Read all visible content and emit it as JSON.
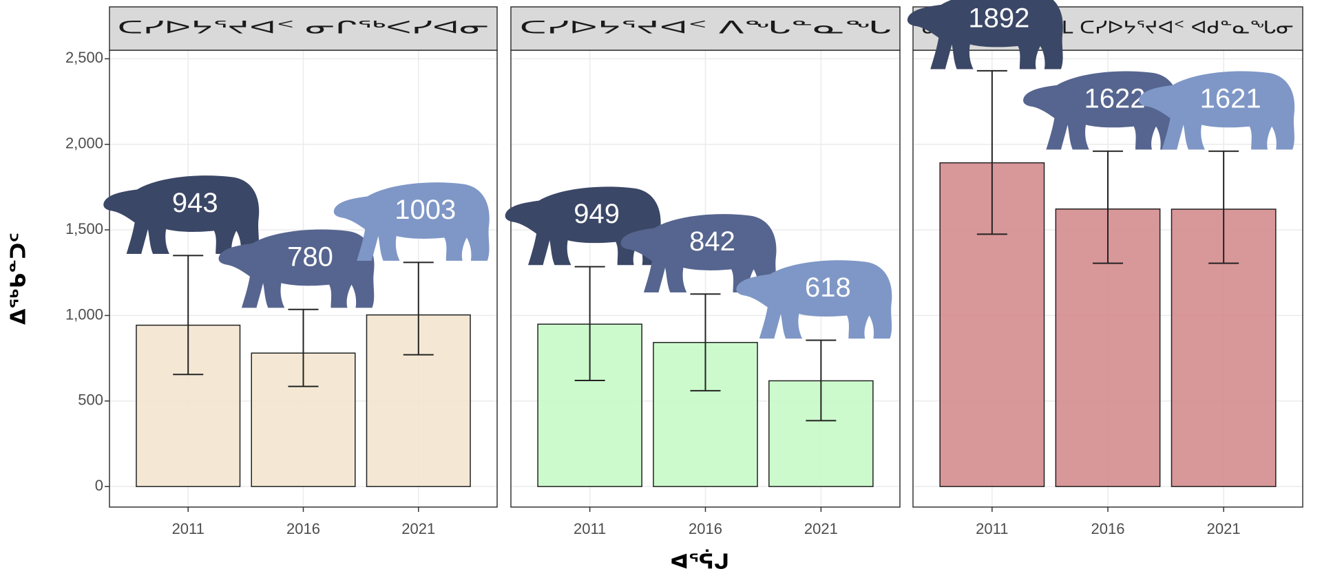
{
  "chart_data": {
    "type": "bar",
    "x_label": "ᐊᕐᕌᒍ",
    "y_label": "ᐃᖅᑲᓐᑐᑦ",
    "ylim": [
      -120,
      2550
    ],
    "yticks": [
      0,
      500,
      {
        "value": 1000,
        "label": "1,000"
      },
      {
        "value": 1500,
        "label": "1,500"
      },
      {
        "value": 2000,
        "label": "2,000"
      },
      {
        "value": 2500,
        "label": "2,500"
      }
    ],
    "grid": true,
    "label_colors": [
      "#3b4766",
      "#56658f",
      "#7f97c6"
    ],
    "facets": [
      {
        "title": "ᑕᓯᐅᔭᕐᔪᐊᑉ ᓂᒋᖅᐸᓯᐊᓂ",
        "color": "#f3e6d0",
        "categories": [
          "2011",
          "2016",
          "2021"
        ],
        "values": [
          943,
          780,
          1003
        ],
        "lower": [
          655,
          585,
          770
        ],
        "upper": [
          1350,
          1035,
          1310
        ]
      },
      {
        "title": "ᑕᓯᐅᔭᕐᔪᐊᑉ ᐱᖓᓐᓇᖓ",
        "color": "#c6f9c6",
        "categories": [
          "2011",
          "2016",
          "2021"
        ],
        "values": [
          949,
          842,
          618
        ],
        "lower": [
          620,
          560,
          385
        ],
        "upper": [
          1285,
          1125,
          855
        ]
      },
      {
        "title": "ᓂᒋᖅᐸᓯᐊᓂ ᐊᒻᒪ ᑕᓯᐅᔭᕐᔪᐊᑉ ᐊᑯᓐᓇᖓᓂ",
        "color": "#d48c8e",
        "categories": [
          "2011",
          "2016",
          "2021"
        ],
        "values": [
          1892,
          1622,
          1621
        ],
        "lower": [
          1475,
          1305,
          1305
        ],
        "upper": [
          2430,
          1960,
          1960
        ]
      }
    ]
  }
}
